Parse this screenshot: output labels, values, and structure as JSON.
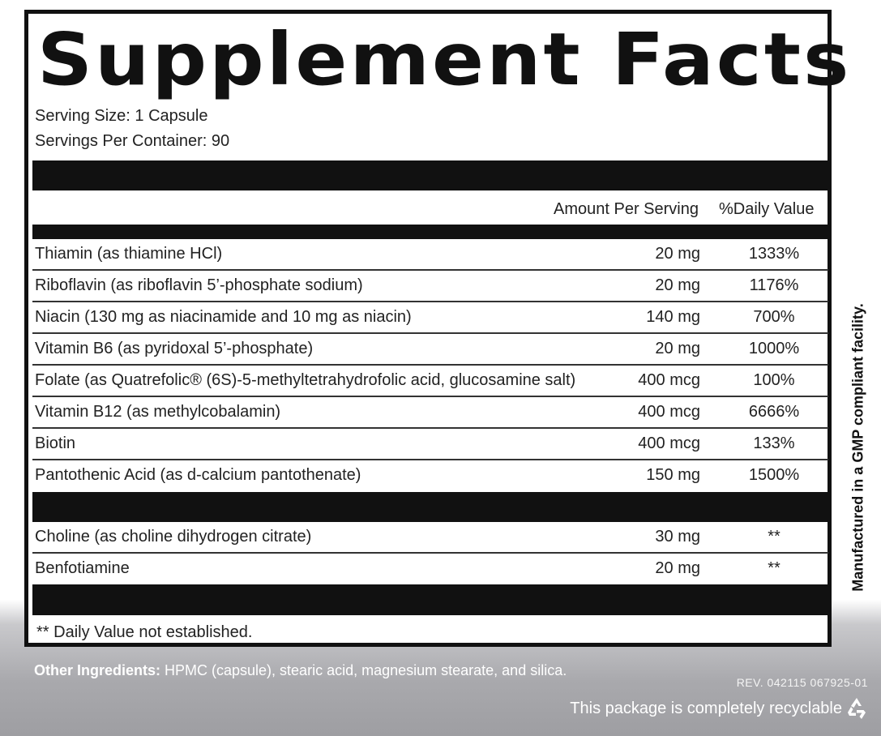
{
  "title": "Supplement Facts",
  "serving_size": "Serving Size: 1 Capsule",
  "servings_per_container": "Servings Per Container: 90",
  "columns": {
    "amount": "Amount Per Serving",
    "daily_value": "%Daily Value"
  },
  "nutrients": [
    {
      "name": "Thiamin (as thiamine HCl)",
      "amount": "20 mg",
      "dv": "1333%"
    },
    {
      "name": "Riboflavin (as riboflavin 5’-phosphate sodium)",
      "amount": "20 mg",
      "dv": "1176%"
    },
    {
      "name": "Niacin (130 mg as niacinamide and 10 mg as niacin)",
      "amount": "140 mg",
      "dv": "700%"
    },
    {
      "name": "Vitamin B6 (as pyridoxal 5’-phosphate)",
      "amount": "20 mg",
      "dv": "1000%"
    },
    {
      "name": "Folate (as Quatrefolic® (6S)-5-methyltetrahydrofolic acid, glucosamine salt)",
      "amount": "400 mcg",
      "dv": "100%"
    },
    {
      "name": "Vitamin B12 (as methylcobalamin)",
      "amount": "400 mcg",
      "dv": "6666%"
    },
    {
      "name": "Biotin",
      "amount": "400 mcg",
      "dv": "133%"
    },
    {
      "name": "Pantothenic Acid (as d-calcium pantothenate)",
      "amount": "150 mg",
      "dv": "1500%"
    }
  ],
  "other_nutrients": [
    {
      "name": "Choline (as choline dihydrogen citrate)",
      "amount": "30 mg",
      "dv": "**"
    },
    {
      "name": "Benfotiamine",
      "amount": "20 mg",
      "dv": "**"
    }
  ],
  "footnote": "** Daily Value not established.",
  "side_text": "Manufactured in a GMP compliant facility.",
  "other_ingredients": {
    "label": "Other Ingredients:",
    "text": " HPMC (capsule), stearic acid, magnesium stearate, and silica."
  },
  "revision": "REV. 042115   067925-01",
  "recyclable": "This package is completely recyclable",
  "icons": {
    "recycle": "recycle-icon"
  }
}
